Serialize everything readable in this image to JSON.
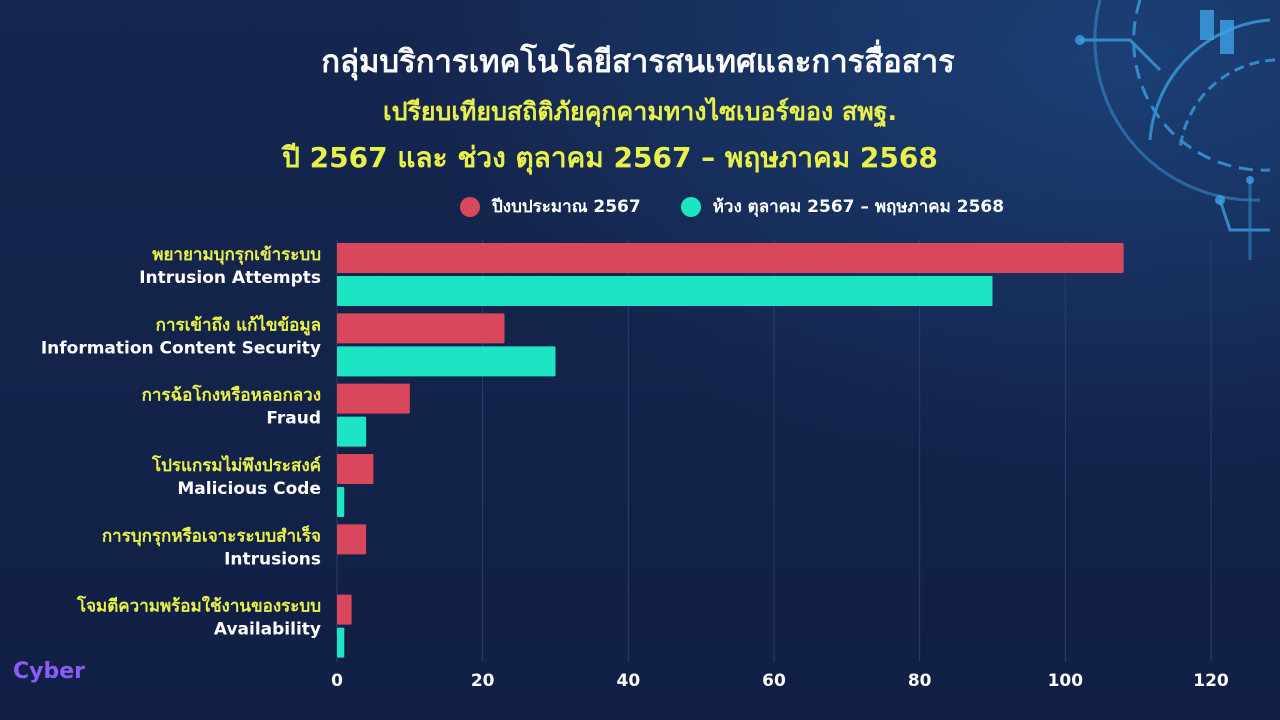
{
  "title": "กลุ่มบริการเทคโนโลยีสารสนเทศและการสื่อสาร",
  "subtitle_line1": "เปรียบเทียบสถิติภัยคุกคามทางไซเบอร์ของ สพฐ.",
  "subtitle_line2": "ปี 2567 และ ช่วง ตุลาคม 2567 – พฤษภาคม 2568",
  "brand": "Cyber",
  "colors": {
    "series1": "#d9475c",
    "series2": "#1de5c4",
    "background": "#13224a",
    "accent": "#e8f04a"
  },
  "chart_data": {
    "type": "bar",
    "orientation": "horizontal",
    "categories": [
      {
        "th": "พยายามบุกรุกเข้าระบบ",
        "en": "Intrusion Attempts"
      },
      {
        "th": "การเข้าถึง แก้ไขข้อมูล",
        "en": "Information Content Security"
      },
      {
        "th": "การฉ้อโกงหรือหลอกลวง",
        "en": "Fraud"
      },
      {
        "th": "โปรแกรมไม่พึงประสงค์",
        "en": "Malicious Code"
      },
      {
        "th": "การบุกรุกหรือเจาะระบบสำเร็จ",
        "en": "Intrusions"
      },
      {
        "th": "โจมตีความพร้อมใช้งานของระบบ",
        "en": "Availability"
      }
    ],
    "series": [
      {
        "name": "ปีงบประมาณ 2567",
        "values": [
          108,
          23,
          10,
          5,
          4,
          2
        ]
      },
      {
        "name": "ห้วง ตุลาคม 2567 – พฤษภาคม 2568",
        "values": [
          90,
          30,
          4,
          1,
          0,
          1
        ]
      }
    ],
    "xlim": [
      0,
      120
    ],
    "xticks": [
      0,
      20,
      40,
      60,
      80,
      100,
      120
    ],
    "grid": true,
    "legend_position": "top"
  }
}
